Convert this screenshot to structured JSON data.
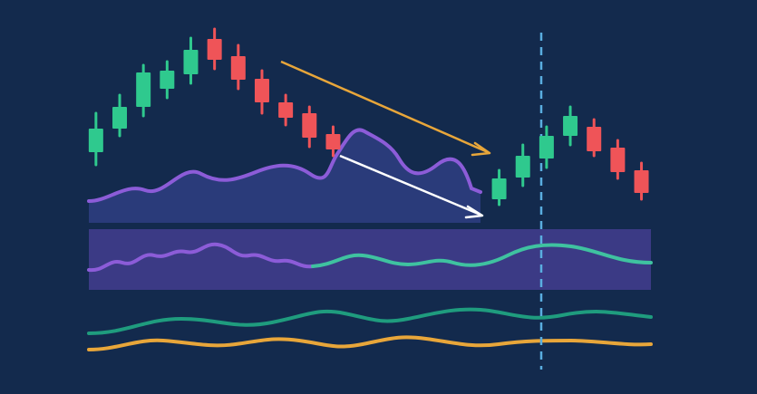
{
  "chart_data": {
    "type": "candlestick",
    "x": [
      0,
      1,
      2,
      3,
      4,
      5,
      6,
      7,
      8,
      9,
      10,
      17,
      18,
      19,
      20,
      21,
      22,
      23
    ],
    "open": [
      267,
      293,
      317,
      337,
      353,
      392,
      373,
      348,
      322,
      310,
      287,
      215,
      239,
      260,
      285,
      295,
      272,
      247
    ],
    "close": [
      293,
      317,
      355,
      357,
      380,
      369,
      347,
      322,
      305,
      283,
      270,
      238,
      263,
      285,
      307,
      268,
      245,
      222
    ],
    "high": [
      310,
      330,
      363,
      367,
      393,
      403,
      385,
      357,
      330,
      317,
      295,
      247,
      275,
      295,
      317,
      303,
      280,
      255
    ],
    "low": [
      253,
      285,
      307,
      327,
      343,
      359,
      337,
      310,
      297,
      273,
      263,
      209,
      230,
      250,
      275,
      263,
      238,
      215
    ],
    "up_color": "#2fc98e",
    "down_color": "#ef5458",
    "xlim": [
      -0.3,
      23.4
    ],
    "ylim": [
      0,
      435
    ]
  }
}
